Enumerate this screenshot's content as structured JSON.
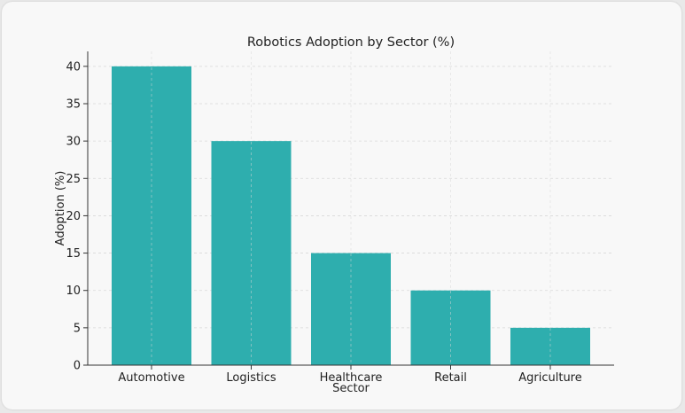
{
  "chart_data": {
    "type": "bar",
    "title": "Robotics Adoption by Sector (%)",
    "xlabel": "Sector",
    "ylabel": "Adoption (%)",
    "categories": [
      "Automotive",
      "Logistics",
      "Healthcare",
      "Retail",
      "Agriculture"
    ],
    "values": [
      40,
      30,
      15,
      10,
      5
    ],
    "ylim": [
      0,
      42
    ],
    "yticks": [
      0,
      5,
      10,
      15,
      20,
      25,
      30,
      35,
      40
    ],
    "grid": true,
    "bar_color": "#2eaeae",
    "grid_color": "#d9d9d9",
    "axis_color": "#333333"
  }
}
